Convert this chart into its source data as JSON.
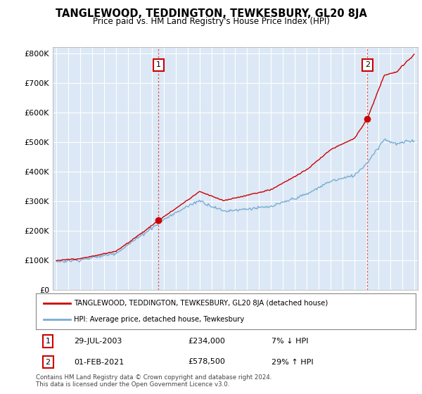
{
  "title": "TANGLEWOOD, TEDDINGTON, TEWKESBURY, GL20 8JA",
  "subtitle": "Price paid vs. HM Land Registry's House Price Index (HPI)",
  "ylabel_ticks": [
    "£0",
    "£100K",
    "£200K",
    "£300K",
    "£400K",
    "£500K",
    "£600K",
    "£700K",
    "£800K"
  ],
  "ylim": [
    0,
    820000
  ],
  "xlim_start": 1994.7,
  "xlim_end": 2025.3,
  "sale1_date_label": "29-JUL-2003",
  "sale1_price": 234000,
  "sale1_price_label": "£234,000",
  "sale1_pct_label": "7% ↓ HPI",
  "sale1_x": 2003.57,
  "sale2_date_label": "01-FEB-2021",
  "sale2_price": 578500,
  "sale2_price_label": "£578,500",
  "sale2_pct_label": "29% ↑ HPI",
  "sale2_x": 2021.08,
  "legend_line1": "TANGLEWOOD, TEDDINGTON, TEWKESBURY, GL20 8JA (detached house)",
  "legend_line2": "HPI: Average price, detached house, Tewkesbury",
  "footer": "Contains HM Land Registry data © Crown copyright and database right 2024.\nThis data is licensed under the Open Government Licence v3.0.",
  "sale_color": "#cc0000",
  "hpi_color": "#7aadd4",
  "bg_color": "#ffffff",
  "chart_bg_color": "#dce8f5",
  "grid_color": "#ffffff",
  "dashed_color": "#dd4444"
}
